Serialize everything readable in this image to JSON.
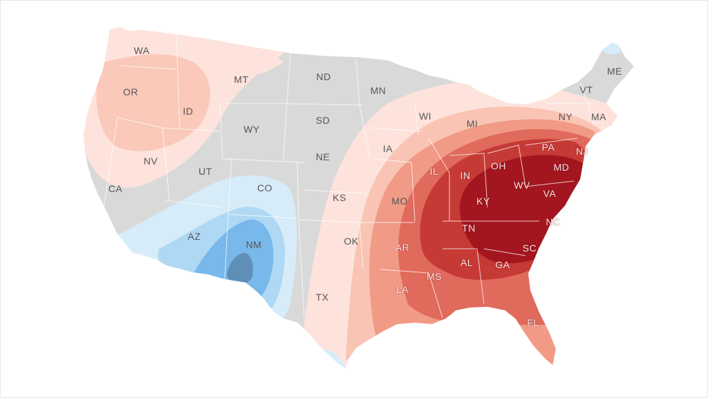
{
  "map": {
    "colors": {
      "neutral": "#d9d9d9",
      "warm_1": "#fde3dc",
      "warm_2": "#f9c4b4",
      "warm_3": "#f19a86",
      "warm_4": "#e06a5c",
      "warm_5": "#c63a35",
      "warm_6": "#a3161f",
      "cool_1": "#d6ecf9",
      "cool_2": "#aed8f4",
      "cool_3": "#78b8ea",
      "cool_4": "#5f8fb8",
      "border": "#ffffff"
    },
    "states": [
      {
        "code": "WA"
      },
      {
        "code": "OR"
      },
      {
        "code": "ID"
      },
      {
        "code": "MT"
      },
      {
        "code": "ND"
      },
      {
        "code": "MN"
      },
      {
        "code": "SD"
      },
      {
        "code": "WY"
      },
      {
        "code": "NV"
      },
      {
        "code": "UT"
      },
      {
        "code": "CO"
      },
      {
        "code": "CA"
      },
      {
        "code": "AZ"
      },
      {
        "code": "NM"
      },
      {
        "code": "NE"
      },
      {
        "code": "KS"
      },
      {
        "code": "OK"
      },
      {
        "code": "TX"
      },
      {
        "code": "IA"
      },
      {
        "code": "MO"
      },
      {
        "code": "AR"
      },
      {
        "code": "LA"
      },
      {
        "code": "WI"
      },
      {
        "code": "MI"
      },
      {
        "code": "IL"
      },
      {
        "code": "IN"
      },
      {
        "code": "OH"
      },
      {
        "code": "KY"
      },
      {
        "code": "TN"
      },
      {
        "code": "MS"
      },
      {
        "code": "AL"
      },
      {
        "code": "GA"
      },
      {
        "code": "FL"
      },
      {
        "code": "SC"
      },
      {
        "code": "NC"
      },
      {
        "code": "VA"
      },
      {
        "code": "WV"
      },
      {
        "code": "MD"
      },
      {
        "code": "PA"
      },
      {
        "code": "NJ"
      },
      {
        "code": "NY"
      },
      {
        "code": "VT"
      },
      {
        "code": "MA"
      },
      {
        "code": "ME"
      }
    ]
  }
}
